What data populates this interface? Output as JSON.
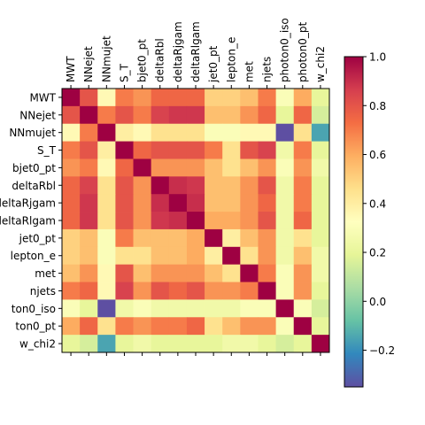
{
  "chart_data": {
    "type": "heatmap",
    "title": "",
    "xlabel": "",
    "ylabel": "",
    "x_tick_position": "top",
    "labels": [
      "MWT",
      "NNejet",
      "NNmujet",
      "S_T",
      "bjet0_pt",
      "deltaRbl",
      "deltaRjgam",
      "deltaRlgam",
      "jet0_pt",
      "lepton_e",
      "met",
      "njets",
      "photon0_iso",
      "photon0_pt",
      "w_chi2"
    ],
    "x_tick_labels": [
      "MWT",
      "NNejet",
      "NNmujet",
      "S_T",
      "bjet0_pt",
      "deltaRbl",
      "deltaRjgam",
      "deltaRlgam",
      "jet0_pt",
      "lepton_e",
      "met",
      "njets",
      "photon0_iso",
      "photon0_pt",
      "w_chi2"
    ],
    "y_tick_labels": [
      "MWT",
      "NNejet",
      "NNmujet",
      "S_T",
      "bjet0_pt",
      "deltaRbl",
      "deltaRjgam",
      "deltaRlgam",
      "jet0_pt",
      "lepton_e",
      "met",
      "njets",
      "ton0_iso",
      "ton0_pt",
      "w_chi2"
    ],
    "values": [
      [
        1.0,
        0.8,
        0.35,
        0.7,
        0.65,
        0.75,
        0.75,
        0.75,
        0.5,
        0.5,
        0.55,
        0.7,
        0.3,
        0.6,
        0.2
      ],
      [
        0.8,
        1.0,
        0.7,
        0.8,
        0.7,
        0.85,
        0.88,
        0.88,
        0.55,
        0.55,
        0.65,
        0.75,
        0.2,
        0.75,
        0.15
      ],
      [
        0.35,
        0.7,
        1.0,
        0.4,
        0.35,
        0.45,
        0.45,
        0.45,
        0.3,
        0.3,
        0.35,
        0.35,
        -0.35,
        0.45,
        -0.15
      ],
      [
        0.7,
        0.8,
        0.4,
        1.0,
        0.75,
        0.8,
        0.8,
        0.8,
        0.7,
        0.45,
        0.8,
        0.85,
        0.25,
        0.7,
        0.2
      ],
      [
        0.65,
        0.7,
        0.35,
        0.75,
        1.0,
        0.65,
        0.65,
        0.65,
        0.55,
        0.45,
        0.55,
        0.65,
        0.3,
        0.65,
        0.25
      ],
      [
        0.75,
        0.85,
        0.45,
        0.8,
        0.65,
        1.0,
        0.9,
        0.88,
        0.55,
        0.55,
        0.65,
        0.8,
        0.25,
        0.7,
        0.2
      ],
      [
        0.75,
        0.88,
        0.45,
        0.8,
        0.65,
        0.9,
        1.0,
        0.9,
        0.55,
        0.55,
        0.65,
        0.75,
        0.25,
        0.7,
        0.2
      ],
      [
        0.75,
        0.88,
        0.45,
        0.8,
        0.65,
        0.88,
        0.9,
        1.0,
        0.6,
        0.6,
        0.65,
        0.8,
        0.25,
        0.75,
        0.2
      ],
      [
        0.5,
        0.55,
        0.3,
        0.7,
        0.55,
        0.55,
        0.55,
        0.6,
        1.0,
        0.4,
        0.55,
        0.65,
        0.25,
        0.45,
        0.2
      ],
      [
        0.5,
        0.55,
        0.3,
        0.45,
        0.45,
        0.55,
        0.55,
        0.6,
        0.4,
        1.0,
        0.45,
        0.65,
        0.25,
        0.55,
        0.25
      ],
      [
        0.55,
        0.65,
        0.35,
        0.8,
        0.55,
        0.65,
        0.65,
        0.65,
        0.55,
        0.45,
        1.0,
        0.7,
        0.3,
        0.65,
        0.25
      ],
      [
        0.7,
        0.75,
        0.35,
        0.85,
        0.65,
        0.8,
        0.75,
        0.8,
        0.65,
        0.65,
        0.7,
        1.0,
        0.3,
        0.65,
        0.2
      ],
      [
        0.3,
        0.2,
        -0.35,
        0.25,
        0.3,
        0.25,
        0.25,
        0.25,
        0.25,
        0.25,
        0.3,
        0.3,
        1.0,
        0.3,
        0.15
      ],
      [
        0.6,
        0.75,
        0.45,
        0.7,
        0.65,
        0.7,
        0.7,
        0.75,
        0.45,
        0.55,
        0.65,
        0.65,
        0.3,
        1.0,
        0.2
      ],
      [
        0.2,
        0.15,
        -0.15,
        0.2,
        0.25,
        0.2,
        0.2,
        0.2,
        0.2,
        0.25,
        0.25,
        0.2,
        0.15,
        0.2,
        1.0
      ]
    ],
    "colormap": "Spectral_r",
    "vmin": -0.35,
    "vmax": 1.0,
    "colorbar_ticks": [
      "1.0",
      "0.8",
      "0.6",
      "0.4",
      "0.2",
      "0.0",
      "−0.2"
    ],
    "colorbar_tick_values": [
      1.0,
      0.8,
      0.6,
      0.4,
      0.2,
      0.0,
      -0.2
    ]
  }
}
